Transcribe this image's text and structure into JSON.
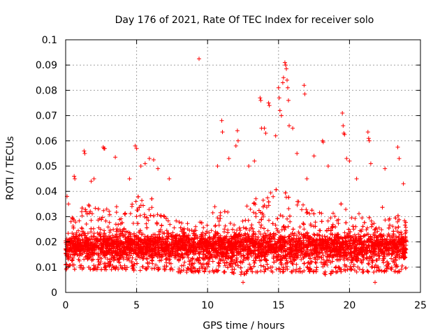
{
  "chart_data": {
    "type": "scatter",
    "title": "Day 176 of 2021, Rate Of TEC Index for receiver solo",
    "xlabel": "GPS time / hours",
    "ylabel": "ROTI / TECUs",
    "xlim": [
      0,
      25
    ],
    "ylim": [
      0,
      0.1
    ],
    "xticks": [
      0,
      5,
      10,
      15,
      20,
      25
    ],
    "xtick_labels": [
      "0",
      "5",
      "10",
      "15",
      "20",
      "25"
    ],
    "yticks": [
      0,
      0.01,
      0.02,
      0.03,
      0.04,
      0.05,
      0.06,
      0.07,
      0.08,
      0.09,
      0.1
    ],
    "ytick_labels": [
      "0",
      "0.01",
      "0.02",
      "0.03",
      "0.04",
      "0.05",
      "0.06",
      "0.07",
      "0.08",
      "0.09",
      "0.1"
    ],
    "grid": true,
    "marker": "plus",
    "color": "#ff0000",
    "x_range_of_data": [
      0,
      24
    ],
    "envelope": {
      "hours": [
        0,
        0.5,
        1,
        1.5,
        2,
        2.5,
        3,
        3.5,
        4,
        4.5,
        5,
        5.5,
        6,
        6.5,
        7,
        7.5,
        8,
        8.5,
        9,
        9.5,
        10,
        10.5,
        11,
        11.5,
        12,
        12.5,
        13,
        13.5,
        14,
        14.5,
        15,
        15.5,
        16,
        16.5,
        17,
        17.5,
        18,
        18.5,
        19,
        19.5,
        20,
        20.5,
        21,
        21.5,
        22,
        22.5,
        23,
        23.5,
        24
      ],
      "typical_low": [
        0.009,
        0.009,
        0.009,
        0.009,
        0.009,
        0.009,
        0.009,
        0.009,
        0.009,
        0.009,
        0.008,
        0.009,
        0.009,
        0.009,
        0.009,
        0.009,
        0.008,
        0.008,
        0.008,
        0.008,
        0.008,
        0.008,
        0.008,
        0.008,
        0.007,
        0.007,
        0.008,
        0.008,
        0.008,
        0.008,
        0.008,
        0.008,
        0.008,
        0.008,
        0.008,
        0.008,
        0.007,
        0.007,
        0.008,
        0.008,
        0.008,
        0.008,
        0.008,
        0.008,
        0.008,
        0.008,
        0.008,
        0.008,
        0.009
      ],
      "typical_high": [
        0.028,
        0.03,
        0.033,
        0.035,
        0.034,
        0.033,
        0.033,
        0.034,
        0.035,
        0.038,
        0.04,
        0.04,
        0.038,
        0.034,
        0.03,
        0.029,
        0.029,
        0.028,
        0.027,
        0.028,
        0.03,
        0.034,
        0.036,
        0.032,
        0.028,
        0.032,
        0.036,
        0.038,
        0.04,
        0.042,
        0.042,
        0.04,
        0.038,
        0.036,
        0.034,
        0.033,
        0.032,
        0.031,
        0.034,
        0.036,
        0.034,
        0.032,
        0.033,
        0.035,
        0.036,
        0.034,
        0.033,
        0.03,
        0.03
      ],
      "density_peak": 0.015
    },
    "notable_points": [
      {
        "x": 0.1,
        "y": 0.038
      },
      {
        "x": 0.2,
        "y": 0.035
      },
      {
        "x": 0.6,
        "y": 0.046
      },
      {
        "x": 0.65,
        "y": 0.045
      },
      {
        "x": 1.3,
        "y": 0.056
      },
      {
        "x": 1.35,
        "y": 0.055
      },
      {
        "x": 1.8,
        "y": 0.044
      },
      {
        "x": 2.0,
        "y": 0.045
      },
      {
        "x": 2.65,
        "y": 0.0575
      },
      {
        "x": 2.7,
        "y": 0.057
      },
      {
        "x": 2.75,
        "y": 0.057
      },
      {
        "x": 3.5,
        "y": 0.0535
      },
      {
        "x": 4.5,
        "y": 0.045
      },
      {
        "x": 4.9,
        "y": 0.058
      },
      {
        "x": 5.0,
        "y": 0.057
      },
      {
        "x": 5.3,
        "y": 0.05
      },
      {
        "x": 5.6,
        "y": 0.051
      },
      {
        "x": 5.9,
        "y": 0.053
      },
      {
        "x": 6.2,
        "y": 0.0525
      },
      {
        "x": 6.5,
        "y": 0.049
      },
      {
        "x": 7.3,
        "y": 0.045
      },
      {
        "x": 9.4,
        "y": 0.0925
      },
      {
        "x": 10.7,
        "y": 0.05
      },
      {
        "x": 11.0,
        "y": 0.068
      },
      {
        "x": 11.05,
        "y": 0.0635
      },
      {
        "x": 11.5,
        "y": 0.053
      },
      {
        "x": 12.0,
        "y": 0.058
      },
      {
        "x": 12.1,
        "y": 0.064
      },
      {
        "x": 12.15,
        "y": 0.06
      },
      {
        "x": 12.9,
        "y": 0.05
      },
      {
        "x": 13.3,
        "y": 0.052
      },
      {
        "x": 13.7,
        "y": 0.077
      },
      {
        "x": 13.75,
        "y": 0.076
      },
      {
        "x": 13.8,
        "y": 0.065
      },
      {
        "x": 14.0,
        "y": 0.065
      },
      {
        "x": 14.1,
        "y": 0.063
      },
      {
        "x": 14.3,
        "y": 0.075
      },
      {
        "x": 14.35,
        "y": 0.074
      },
      {
        "x": 14.8,
        "y": 0.062
      },
      {
        "x": 15.0,
        "y": 0.081
      },
      {
        "x": 15.05,
        "y": 0.077
      },
      {
        "x": 15.1,
        "y": 0.072
      },
      {
        "x": 15.2,
        "y": 0.07
      },
      {
        "x": 15.3,
        "y": 0.083
      },
      {
        "x": 15.35,
        "y": 0.085
      },
      {
        "x": 15.45,
        "y": 0.091
      },
      {
        "x": 15.5,
        "y": 0.09
      },
      {
        "x": 15.55,
        "y": 0.0885
      },
      {
        "x": 15.6,
        "y": 0.084
      },
      {
        "x": 15.65,
        "y": 0.081
      },
      {
        "x": 15.7,
        "y": 0.076
      },
      {
        "x": 15.75,
        "y": 0.066
      },
      {
        "x": 16.0,
        "y": 0.065
      },
      {
        "x": 16.3,
        "y": 0.055
      },
      {
        "x": 16.8,
        "y": 0.082
      },
      {
        "x": 16.85,
        "y": 0.0785
      },
      {
        "x": 17.0,
        "y": 0.045
      },
      {
        "x": 17.5,
        "y": 0.054
      },
      {
        "x": 18.1,
        "y": 0.06
      },
      {
        "x": 18.15,
        "y": 0.0595
      },
      {
        "x": 18.5,
        "y": 0.05
      },
      {
        "x": 19.5,
        "y": 0.071
      },
      {
        "x": 19.55,
        "y": 0.066
      },
      {
        "x": 19.6,
        "y": 0.063
      },
      {
        "x": 19.65,
        "y": 0.0625
      },
      {
        "x": 19.8,
        "y": 0.053
      },
      {
        "x": 20.0,
        "y": 0.052
      },
      {
        "x": 20.5,
        "y": 0.045
      },
      {
        "x": 21.3,
        "y": 0.0635
      },
      {
        "x": 21.35,
        "y": 0.061
      },
      {
        "x": 21.4,
        "y": 0.06
      },
      {
        "x": 21.5,
        "y": 0.051
      },
      {
        "x": 22.5,
        "y": 0.049
      },
      {
        "x": 23.4,
        "y": 0.0575
      },
      {
        "x": 23.5,
        "y": 0.053
      },
      {
        "x": 23.8,
        "y": 0.043
      },
      {
        "x": 12.5,
        "y": 0.004
      },
      {
        "x": 21.8,
        "y": 0.004
      }
    ]
  }
}
